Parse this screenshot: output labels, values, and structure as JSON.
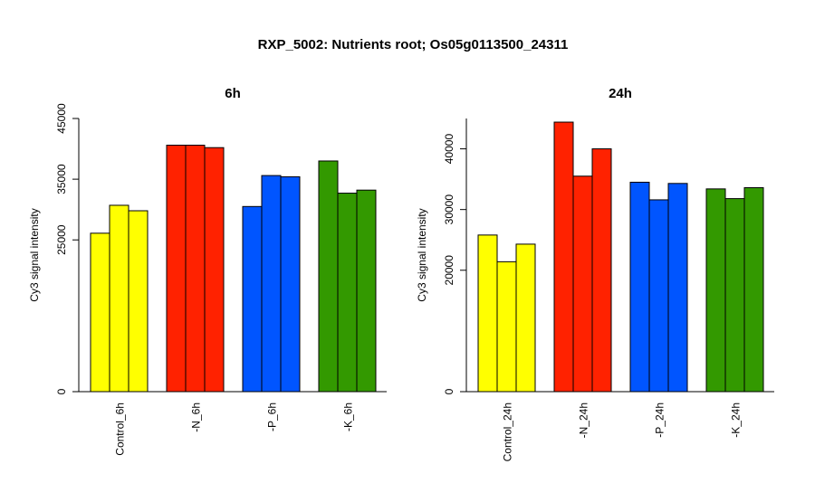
{
  "chart_data": {
    "title": "RXP_5002: Nutrients root; Os05g0113500_24311",
    "panels": [
      {
        "type": "bar",
        "title": "6h",
        "ylabel": "Cy3 signal intensity",
        "ylim": [
          0,
          45000
        ],
        "yticks": [
          0,
          25000,
          35000,
          45000
        ],
        "ytick_labels": [
          "0",
          "25000",
          "35000",
          "45000"
        ],
        "categories": [
          "Control_6h",
          "-N_6h",
          "-P_6h",
          "-K_6h"
        ],
        "colors": [
          "#ffff00",
          "#ff2200",
          "#0055ff",
          "#339900"
        ],
        "values": [
          [
            26100,
            30700,
            29800
          ],
          [
            40600,
            40600,
            40200
          ],
          [
            30500,
            35600,
            35400
          ],
          [
            38000,
            32700,
            33200
          ]
        ]
      },
      {
        "type": "bar",
        "title": "24h",
        "ylabel": "Cy3 signal intensity",
        "ylim": [
          0,
          45000
        ],
        "yticks": [
          0,
          20000,
          30000,
          40000
        ],
        "ytick_labels": [
          "0",
          "20000",
          "30000",
          "40000"
        ],
        "categories": [
          "Control_24h",
          "-N_24h",
          "-P_24h",
          "-K_24h"
        ],
        "colors": [
          "#ffff00",
          "#ff2200",
          "#0055ff",
          "#339900"
        ],
        "values": [
          [
            25800,
            21400,
            24300
          ],
          [
            44400,
            35500,
            40000
          ],
          [
            34500,
            31600,
            34300
          ],
          [
            33400,
            31800,
            33600
          ]
        ]
      }
    ]
  }
}
